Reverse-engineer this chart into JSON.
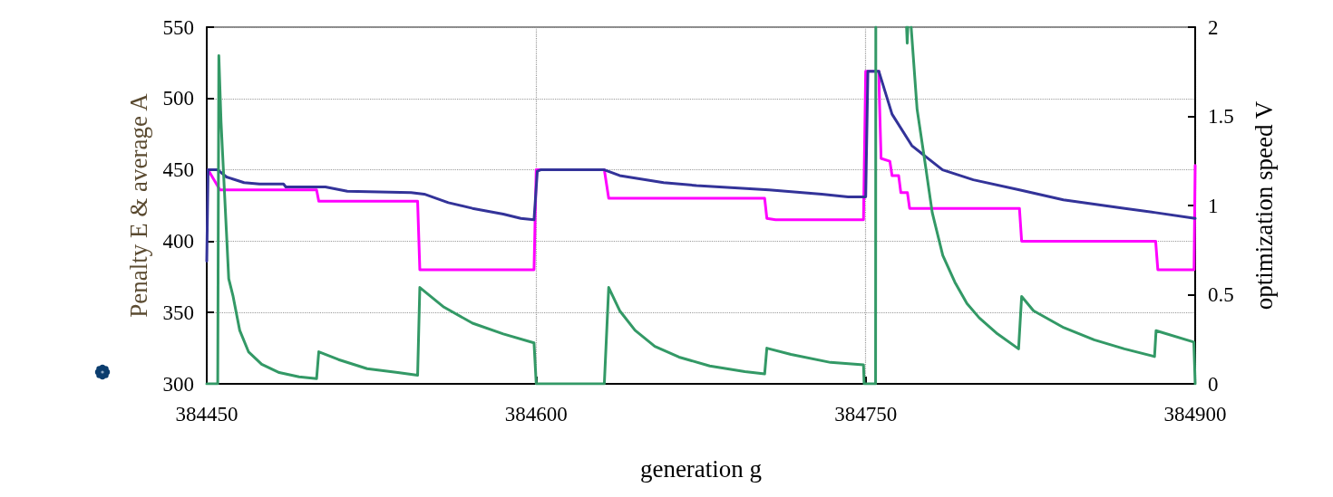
{
  "chart_data": {
    "type": "line",
    "xlabel": "generation g",
    "ylabel": "Penalty E & average A",
    "y2label": "optimization speed V",
    "xlim": [
      384450,
      384900
    ],
    "xticks": [
      384450,
      384600,
      384750,
      384900
    ],
    "ylim": [
      300,
      550
    ],
    "yticks": [
      300,
      350,
      400,
      450,
      500,
      550
    ],
    "y2lim": [
      0,
      2
    ],
    "y2ticks": [
      0,
      0.5,
      1,
      1.5,
      2
    ],
    "grid": true,
    "marker": "none",
    "line_style": "solid",
    "series": [
      {
        "color": "#ff00ff",
        "x": [
          384450.6,
          384456,
          384500,
          384501,
          384546,
          384547,
          384599,
          384600,
          384631,
          384633,
          384704,
          384705,
          384709,
          384749,
          384750,
          384756,
          384756.2,
          384757,
          384761,
          384762,
          384765,
          384766,
          384769,
          384770,
          384820,
          384821,
          384882,
          384883,
          384899.5,
          384900
        ],
        "values": [
          450,
          436,
          436,
          428,
          428,
          380,
          380,
          450,
          450,
          430,
          430,
          416,
          415,
          415,
          519,
          519,
          502,
          458,
          456,
          446,
          446,
          434,
          434,
          423,
          423,
          400,
          400,
          380,
          380,
          453
        ]
      },
      {
        "color": "#333399",
        "x": [
          384450,
          384450.6,
          384455,
          384459,
          384467,
          384474,
          384485,
          384486,
          384504,
          384514,
          384543,
          384549,
          384560,
          384571,
          384585,
          384593,
          384599,
          384600.5,
          384602,
          384631,
          384638,
          384658,
          384673,
          384706,
          384730,
          384742,
          384750,
          384751,
          384756,
          384762,
          384771,
          384780,
          384785,
          384799,
          384820,
          384840,
          384868,
          384882,
          384900
        ],
        "values": [
          386,
          450,
          450,
          445,
          441,
          440,
          440,
          438,
          438,
          435,
          434,
          433,
          427,
          423,
          419,
          416,
          415,
          449,
          450,
          450,
          446,
          441,
          439,
          436,
          433,
          431,
          431,
          519,
          519,
          489,
          467,
          456,
          450,
          443,
          436,
          429,
          423,
          420,
          416
        ]
      },
      {
        "color": "#339966",
        "axis": "y2",
        "x": [
          384450,
          384455,
          384455.5,
          384456.5,
          384460,
          384462,
          384465,
          384469,
          384475,
          384483,
          384492,
          384500,
          384501,
          384510,
          384523,
          384537,
          384546,
          384547,
          384558,
          384571,
          384585,
          384599,
          384600,
          384631,
          384633,
          384638,
          384645,
          384654,
          384665,
          384679,
          384695,
          384704,
          384705,
          384716,
          384734,
          384749,
          384749.3,
          384754.5,
          384754.6,
          384760,
          384768.6,
          384768.9,
          384769.2,
          384770,
          384770.7,
          384773.4,
          384776.9,
          384780.3,
          384785.1,
          384790.6,
          384796.1,
          384801.7,
          384810,
          384819.6,
          384821,
          384826.4,
          384840.2,
          384854,
          384867.8,
          384881.5,
          384882.2,
          384899.4,
          384900
        ],
        "values": [
          0,
          0,
          1.84,
          1.47,
          0.59,
          0.49,
          0.3,
          0.18,
          0.11,
          0.063,
          0.039,
          0.029,
          0.18,
          0.136,
          0.085,
          0.063,
          0.048,
          0.54,
          0.43,
          0.34,
          0.28,
          0.23,
          0,
          0,
          0.54,
          0.41,
          0.3,
          0.21,
          0.15,
          0.1,
          0.068,
          0.056,
          0.2,
          0.165,
          0.12,
          0.107,
          0,
          0,
          2,
          null,
          2,
          1.91,
          2,
          null,
          2,
          1.54,
          1.25,
          0.96,
          0.72,
          0.57,
          0.45,
          0.37,
          0.28,
          0.196,
          0.49,
          0.41,
          0.315,
          0.247,
          0.196,
          0.153,
          0.298,
          0.234,
          0
        ]
      }
    ]
  }
}
